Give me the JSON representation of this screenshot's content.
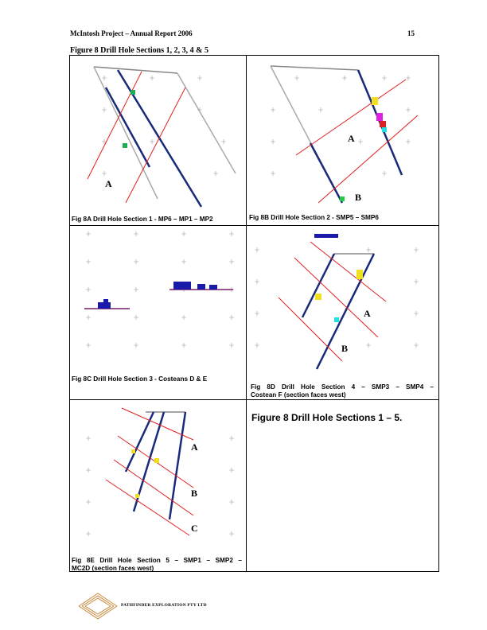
{
  "header": {
    "left": "McIntosh Project – Annual Report  2006",
    "page_number": "15"
  },
  "figure_title": "Figure 8  Drill Hole Sections 1, 2, 3, 4 & 5",
  "panels": [
    {
      "id": "8A",
      "caption": "Fig 8A  Drill Hole Section 1 -  MP6 – MP1 – MP2",
      "labels": [
        "A"
      ]
    },
    {
      "id": "8B",
      "caption": "Fig 8B Drill Hole Section 2 -   SMP5 – SMP6",
      "labels": [
        "A",
        "B"
      ]
    },
    {
      "id": "8C",
      "caption": "Fig 8C  Drill Hole Section 3 - Costeans D & E",
      "labels": []
    },
    {
      "id": "8D",
      "caption_line1": "Fig  8D  Drill  Hole  Section  4  –  SMP3  –  SMP4  –",
      "caption_line2": "Costean F (section faces west)",
      "labels": [
        "A",
        "B"
      ]
    },
    {
      "id": "8E",
      "caption_line1": "Fig  8E  Drill  Hole  Section  5  –  SMP1  –  SMP2  –",
      "caption_line2": "MC2D  (section faces west)",
      "labels": [
        "A",
        "B",
        "C"
      ]
    }
  ],
  "side_title": "Figure  8  Drill Hole Sections 1 – 5.",
  "footer": {
    "company": "PATHFINDER EXPLORATION PTY LTD",
    "logo": "pathfinder-logo"
  }
}
